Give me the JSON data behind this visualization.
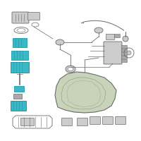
{
  "bg_color": "#ffffff",
  "line_color": "#6a6a6a",
  "teal_color": "#3ab8c5",
  "teal_dark": "#1a9aaa",
  "gray_light": "#cccccc",
  "gray_mid": "#aaaaaa",
  "tank_fill": "#c8d4b8",
  "fig_width": 2.0,
  "fig_height": 2.0,
  "dpi": 100
}
